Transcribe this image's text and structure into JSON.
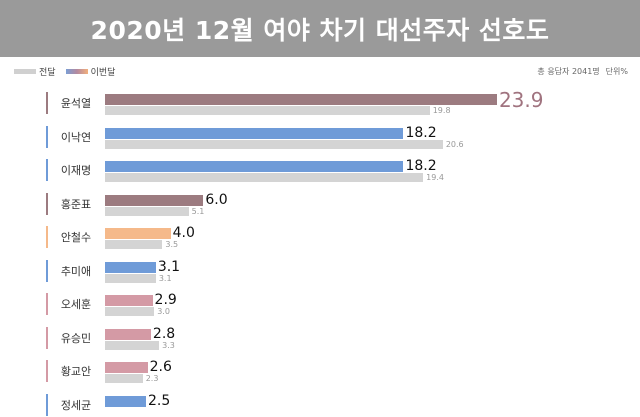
{
  "title": "2020년 12월 여야 차기 대선주자 선호도",
  "legend": {
    "previous_label": "전달",
    "current_label": "이번달"
  },
  "note": {
    "respondents": "총 응답자 2041명",
    "unit": "단위%"
  },
  "colors": {
    "title_bg": "#9a9a9a",
    "previous": "#d4d4d4",
    "blue": "#6f9bd8",
    "mauve": "#9c7b80",
    "pink": "#d49aa5",
    "orange": "#f5b98a",
    "highlight_text": "#a0737f"
  },
  "chart_data": {
    "type": "bar",
    "orientation": "horizontal",
    "categories": [
      "윤석열",
      "이낙연",
      "이재명",
      "홍준표",
      "안철수",
      "추미애",
      "오세훈",
      "유승민",
      "황교안",
      "정세균"
    ],
    "series": [
      {
        "name": "이번달",
        "values": [
          23.9,
          18.2,
          18.2,
          6.0,
          4.0,
          3.1,
          2.9,
          2.8,
          2.6,
          2.5
        ],
        "labels": [
          "23.9",
          "18.2",
          "18.2",
          "6.0",
          "4.0",
          "3.1",
          "2.9",
          "2.8",
          "2.6",
          "2.5"
        ],
        "bar_colors": [
          "#9c7b80",
          "#6f9bd8",
          "#6f9bd8",
          "#9c7b80",
          "#f5b98a",
          "#6f9bd8",
          "#d49aa5",
          "#d49aa5",
          "#d49aa5",
          "#6f9bd8"
        ]
      },
      {
        "name": "전달",
        "values": [
          19.8,
          20.6,
          19.4,
          5.1,
          3.5,
          3.1,
          3.0,
          3.3,
          2.3,
          null
        ],
        "labels": [
          "19.8",
          "20.6",
          "19.4",
          "5.1",
          "3.5",
          "3.1",
          "3.0",
          "3.3",
          "2.3",
          ""
        ]
      }
    ],
    "xlim": [
      0,
      25
    ],
    "grid": false,
    "legend_position": "top-left"
  }
}
